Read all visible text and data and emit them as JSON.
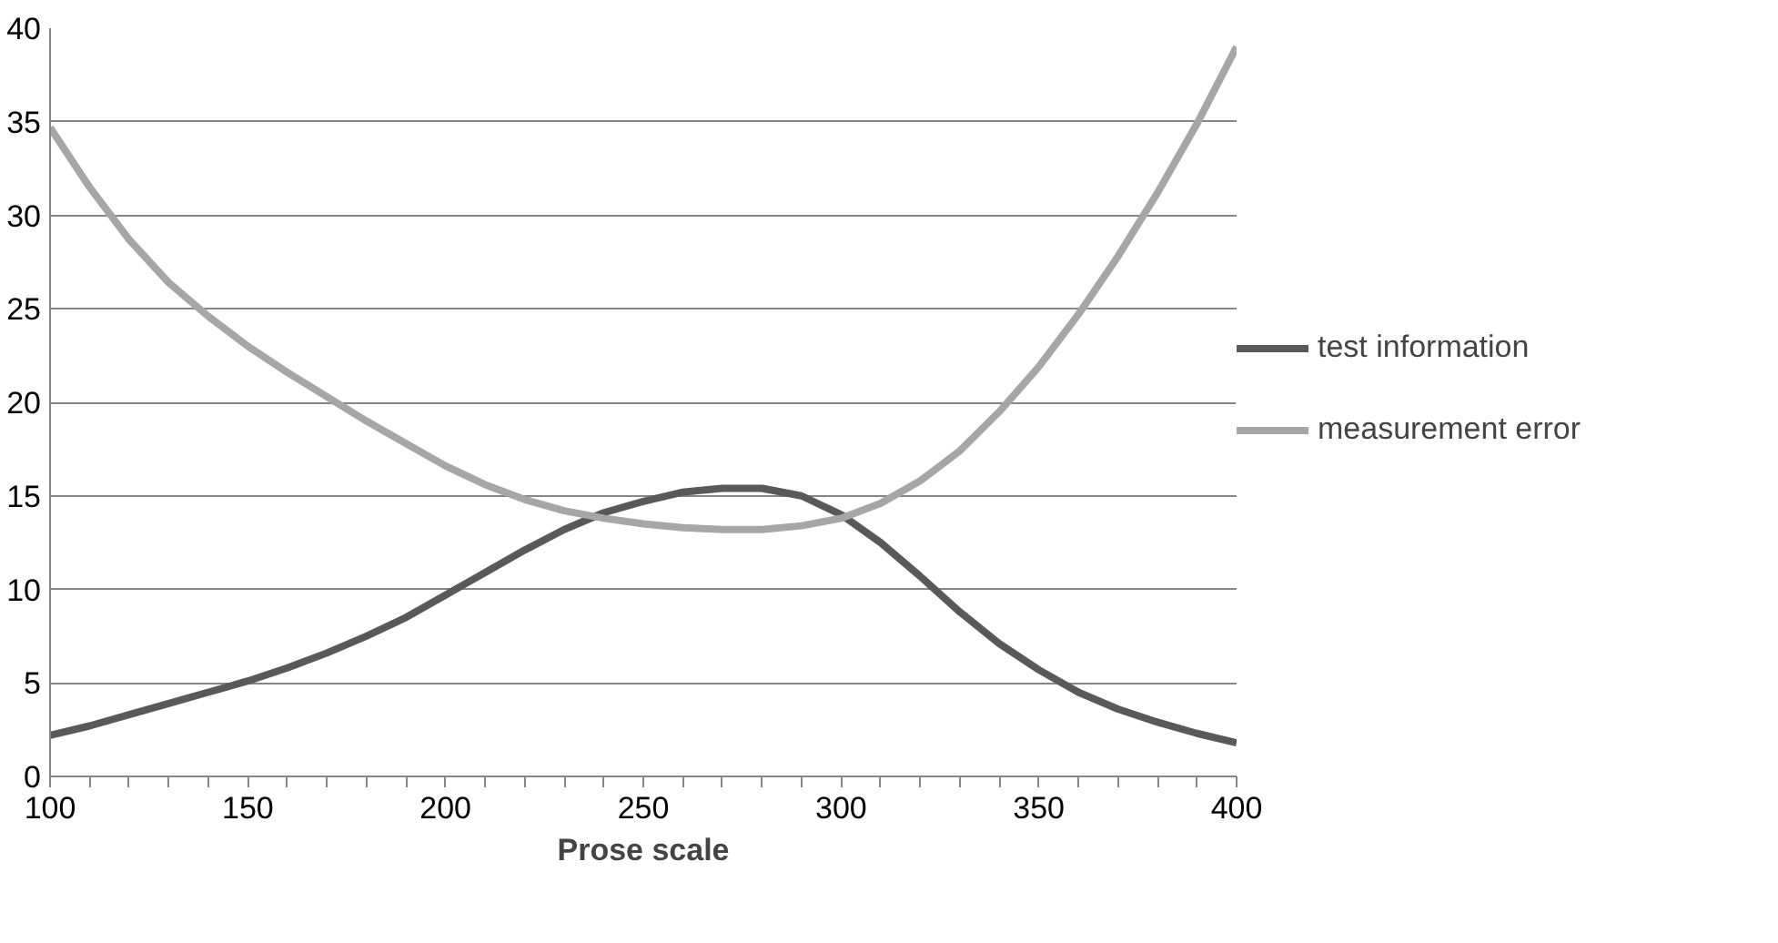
{
  "chart_data": {
    "type": "line",
    "xlabel": "Prose scale",
    "x": [
      100,
      110,
      120,
      130,
      140,
      150,
      160,
      170,
      180,
      190,
      200,
      210,
      220,
      230,
      240,
      250,
      260,
      270,
      280,
      290,
      300,
      310,
      320,
      330,
      340,
      350,
      360,
      370,
      380,
      390,
      400
    ],
    "series": [
      {
        "name": "test information",
        "color": "#595959",
        "values": [
          2.2,
          2.7,
          3.3,
          3.9,
          4.5,
          5.1,
          5.8,
          6.6,
          7.5,
          8.5,
          9.7,
          10.9,
          12.1,
          13.2,
          14.1,
          14.7,
          15.2,
          15.4,
          15.4,
          15.0,
          14.0,
          12.5,
          10.7,
          8.8,
          7.1,
          5.7,
          4.5,
          3.6,
          2.9,
          2.3,
          1.8
        ]
      },
      {
        "name": "measurement error",
        "color": "#a6a6a6",
        "values": [
          34.7,
          31.5,
          28.7,
          26.4,
          24.6,
          23.0,
          21.6,
          20.3,
          19.0,
          17.8,
          16.6,
          15.6,
          14.8,
          14.2,
          13.8,
          13.5,
          13.3,
          13.2,
          13.2,
          13.4,
          13.8,
          14.6,
          15.8,
          17.4,
          19.5,
          21.9,
          24.7,
          27.8,
          31.2,
          34.9,
          39.0
        ]
      }
    ],
    "xlim": [
      100,
      400
    ],
    "ylim": [
      0,
      40
    ],
    "xticks": [
      100,
      {
        "value": 110,
        "label": null
      },
      {
        "value": 120,
        "label": null
      },
      {
        "value": 130,
        "label": null
      },
      {
        "value": 140,
        "label": null
      },
      150,
      {
        "value": 160,
        "label": null
      },
      {
        "value": 170,
        "label": null
      },
      {
        "value": 180,
        "label": null
      },
      {
        "value": 190,
        "label": null
      },
      200,
      {
        "value": 210,
        "label": null
      },
      {
        "value": 220,
        "label": null
      },
      {
        "value": 230,
        "label": null
      },
      {
        "value": 240,
        "label": null
      },
      250,
      {
        "value": 260,
        "label": null
      },
      {
        "value": 270,
        "label": null
      },
      {
        "value": 280,
        "label": null
      },
      {
        "value": 290,
        "label": null
      },
      300,
      {
        "value": 310,
        "label": null
      },
      {
        "value": 320,
        "label": null
      },
      {
        "value": 330,
        "label": null
      },
      {
        "value": 340,
        "label": null
      },
      350,
      {
        "value": 360,
        "label": null
      },
      {
        "value": 370,
        "label": null
      },
      {
        "value": 380,
        "label": null
      },
      {
        "value": 390,
        "label": null
      },
      400
    ],
    "yticks": [
      0,
      5,
      10,
      15,
      20,
      25,
      30,
      35,
      40
    ],
    "grid": "y",
    "legend": "right",
    "marker": "none",
    "line_style": "solid"
  }
}
